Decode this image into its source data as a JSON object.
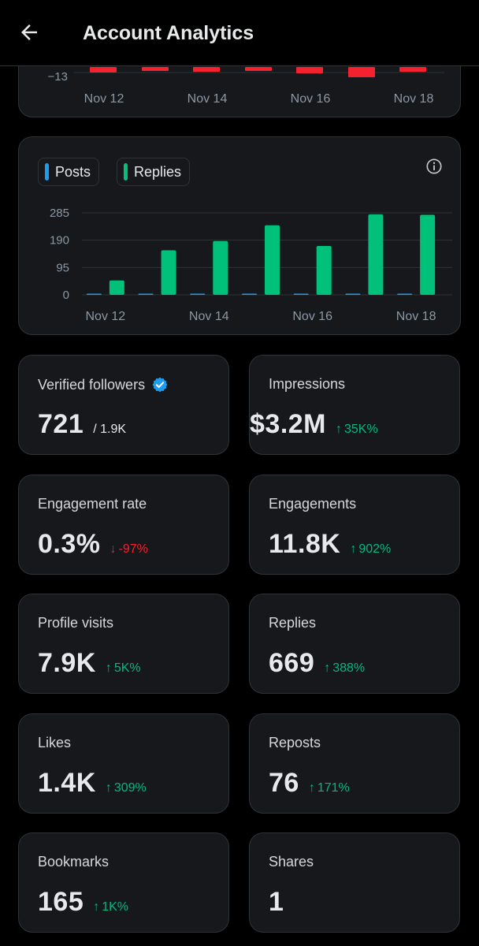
{
  "header": {
    "title": "Account Analytics"
  },
  "colors": {
    "posts": "#1d9bf0",
    "replies": "#00c07a",
    "negative": "#f4212e",
    "positive": "#00ba7c"
  },
  "top_chart": {
    "y_tick": "−13",
    "x_labels": [
      "Nov 12",
      "Nov 14",
      "Nov 16",
      "Nov 18"
    ]
  },
  "legend": {
    "posts": "Posts",
    "replies": "Replies"
  },
  "chart_data": {
    "type": "bar",
    "categories": [
      "Nov 12",
      "Nov 13",
      "Nov 14",
      "Nov 15",
      "Nov 16",
      "Nov 17",
      "Nov 18"
    ],
    "x_tick_labels": [
      "Nov 12",
      "Nov 14",
      "Nov 16",
      "Nov 18"
    ],
    "y_ticks": [
      "285",
      "190",
      "95",
      "0"
    ],
    "ylim": [
      0,
      285
    ],
    "series": [
      {
        "name": "Posts",
        "values": [
          1,
          1,
          1,
          1,
          1,
          1,
          1
        ]
      },
      {
        "name": "Replies",
        "values": [
          50,
          155,
          187,
          242,
          170,
          280,
          278
        ]
      }
    ],
    "legend_position": "top-left",
    "grid": true
  },
  "metrics": {
    "verified_followers": {
      "label": "Verified followers",
      "value": "721",
      "sub": "/ 1.9K"
    },
    "impressions": {
      "label": "Impressions",
      "value": "$3.2M",
      "delta": "35K%"
    },
    "engagement_rate": {
      "label": "Engagement rate",
      "value": "0.3%",
      "delta": "-97%"
    },
    "engagements": {
      "label": "Engagements",
      "value": "11.8K",
      "delta": "902%"
    },
    "profile_visits": {
      "label": "Profile visits",
      "value": "7.9K",
      "delta": "5K%"
    },
    "replies": {
      "label": "Replies",
      "value": "669",
      "delta": "388%"
    },
    "likes": {
      "label": "Likes",
      "value": "1.4K",
      "delta": "309%"
    },
    "reposts": {
      "label": "Reposts",
      "value": "76",
      "delta": "171%"
    },
    "bookmarks": {
      "label": "Bookmarks",
      "value": "165",
      "delta": "1K%"
    },
    "shares": {
      "label": "Shares",
      "value": "1"
    }
  },
  "icons": {
    "back": "arrow-left-icon",
    "info": "info-icon",
    "verified": "verified-badge-icon",
    "up": "arrow-up-icon",
    "down": "arrow-down-icon"
  }
}
